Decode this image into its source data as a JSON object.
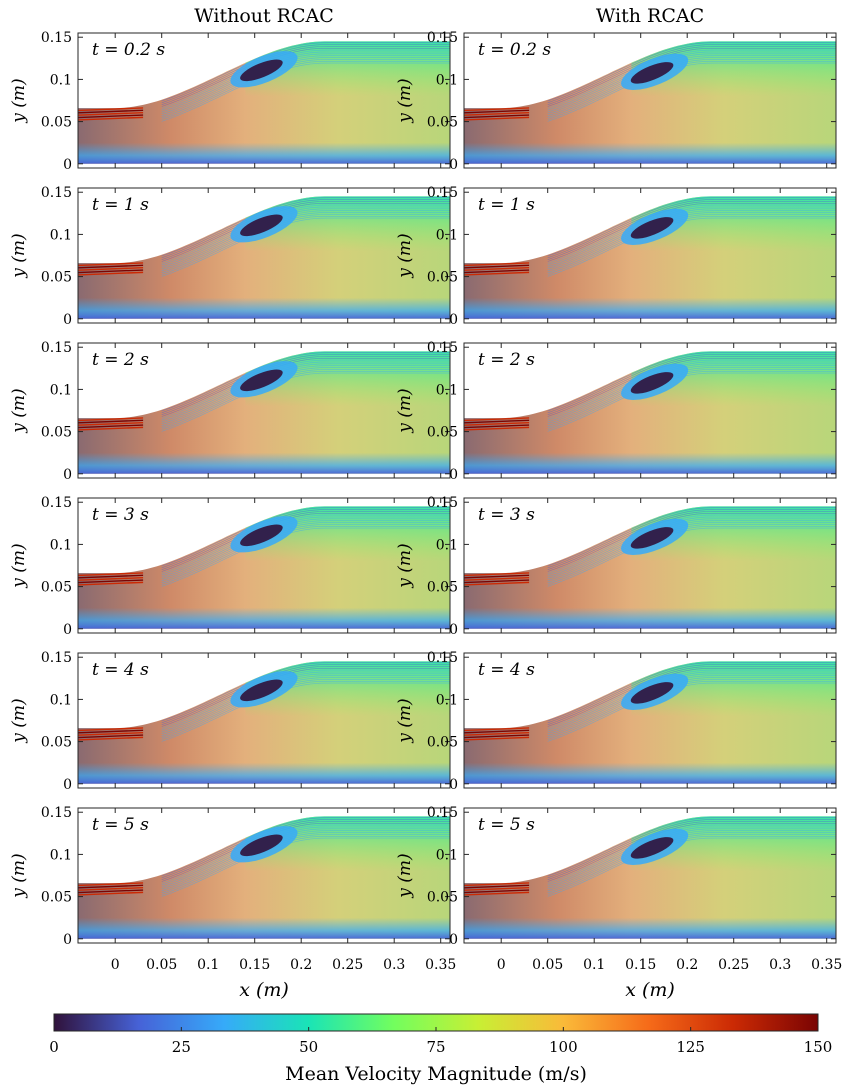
{
  "chart_data": {
    "type": "heatmap",
    "columns": [
      "Without RCAC",
      "With RCAC"
    ],
    "panels": [
      {
        "time_label": "t = 0.2 s",
        "t": 0.2
      },
      {
        "time_label": "t = 1 s",
        "t": 1
      },
      {
        "time_label": "t = 2 s",
        "t": 2
      },
      {
        "time_label": "t = 3 s",
        "t": 3
      },
      {
        "time_label": "t = 4 s",
        "t": 4
      },
      {
        "time_label": "t = 5 s",
        "t": 5
      }
    ],
    "xlabel": "x (m)",
    "ylabel": "y (m)",
    "xlim": [
      -0.04,
      0.36
    ],
    "ylim": [
      -0.005,
      0.155
    ],
    "xticks": [
      0,
      0.05,
      0.1,
      0.15,
      0.2,
      0.25,
      0.3,
      0.35
    ],
    "xtick_labels": [
      "0",
      "0.05",
      "0.1",
      "0.15",
      "0.2",
      "0.25",
      "0.3",
      "0.35"
    ],
    "yticks": [
      0,
      0.05,
      0.1,
      0.15
    ],
    "ytick_labels": [
      "0",
      "0.05",
      "0.1",
      "0.15"
    ],
    "colorbar": {
      "label": "Mean Velocity Magnitude (m/s)",
      "min": 0,
      "max": 150,
      "ticks": [
        0,
        25,
        50,
        75,
        100,
        125,
        150
      ],
      "tick_labels": [
        "0",
        "25",
        "50",
        "75",
        "100",
        "125",
        "150"
      ],
      "colormap": "turbo",
      "colors": [
        "#30123b",
        "#4662d7",
        "#36aaf9",
        "#1ae4b6",
        "#72fe5e",
        "#c8ef34",
        "#faba39",
        "#f66b19",
        "#cb2a04",
        "#7a0403"
      ]
    }
  }
}
